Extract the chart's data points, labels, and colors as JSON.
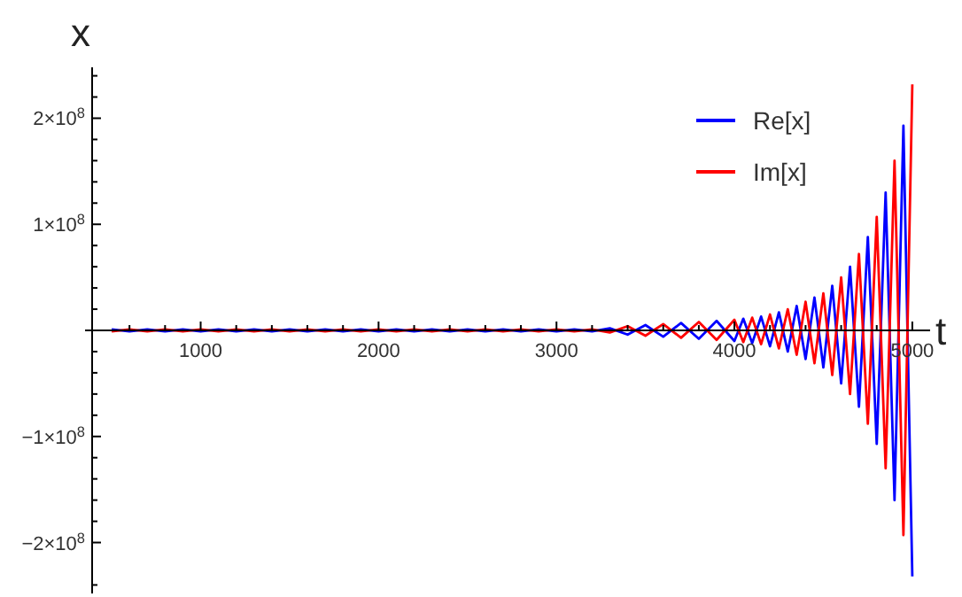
{
  "chart_data": {
    "type": "line",
    "xlabel": "t",
    "ylabel": "x",
    "x": [
      500,
      600,
      700,
      800,
      900,
      1000,
      1100,
      1200,
      1300,
      1400,
      1500,
      1600,
      1700,
      1800,
      1900,
      2000,
      2100,
      2200,
      2300,
      2400,
      2500,
      2600,
      2700,
      2800,
      2900,
      3000,
      3100,
      3200,
      3300,
      3400,
      3500,
      3600,
      3700,
      3800,
      3900,
      4000,
      4050,
      4100,
      4150,
      4200,
      4250,
      4300,
      4350,
      4400,
      4450,
      4500,
      4550,
      4600,
      4650,
      4700,
      4750,
      4800,
      4850,
      4900,
      4950,
      5000
    ],
    "series": [
      {
        "name": "Re[x]",
        "color": "#0000ff",
        "values": [
          1000000.0,
          -1000000.0,
          1000000.0,
          -1000000.0,
          1000000.0,
          -1000000.0,
          1000000.0,
          -1000000.0,
          1000000.0,
          -1000000.0,
          1000000.0,
          -1000000.0,
          1000000.0,
          -1000000.0,
          1000000.0,
          -1000000.0,
          1000000.0,
          -1000000.0,
          1000000.0,
          -1000000.0,
          1000000.0,
          -1000000.0,
          1000000.0,
          -1000000.0,
          1000000.0,
          -1000000.0,
          1000000.0,
          -1000000.0,
          2000000.0,
          -4000000.0,
          5000000.0,
          -6000000.0,
          7000000.0,
          -8000000.0,
          9000000.0,
          -10000000.0,
          11000000.0,
          -12000000.0,
          13000000.0,
          -15000000.0,
          17000000.0,
          -20000000.0,
          23000000.0,
          -27000000.0,
          31000000.0,
          -35000000.0,
          42000000.0,
          -50000000.0,
          60000000.0,
          -72000000.0,
          88000000.0,
          -107000000.0,
          130000000.0,
          -160000000.0,
          193000000.0,
          -232000000.0
        ]
      },
      {
        "name": "Im[x]",
        "color": "#ff0000",
        "values": [
          -1000000.0,
          1000000.0,
          -1000000.0,
          1000000.0,
          -1000000.0,
          1000000.0,
          -1000000.0,
          1000000.0,
          -1000000.0,
          1000000.0,
          -1000000.0,
          1000000.0,
          -1000000.0,
          1000000.0,
          -1000000.0,
          1000000.0,
          -1000000.0,
          1000000.0,
          -1000000.0,
          1000000.0,
          -1000000.0,
          1000000.0,
          -1000000.0,
          1000000.0,
          -1000000.0,
          1000000.0,
          -1000000.0,
          1000000.0,
          -2000000.0,
          4000000.0,
          -5000000.0,
          6000000.0,
          -7000000.0,
          8000000.0,
          -9000000.0,
          10000000.0,
          -11000000.0,
          12000000.0,
          -13000000.0,
          15000000.0,
          -17000000.0,
          20000000.0,
          -23000000.0,
          27000000.0,
          -31000000.0,
          35000000.0,
          -42000000.0,
          50000000.0,
          -60000000.0,
          72000000.0,
          -88000000.0,
          107000000.0,
          -130000000.0,
          160000000.0,
          -193000000.0,
          232000000.0
        ]
      }
    ],
    "xlim": [
      390,
      5100
    ],
    "xticks": [
      {
        "value": 600,
        "label": null
      },
      {
        "value": 800,
        "label": null
      },
      1000,
      {
        "value": 1200,
        "label": null
      },
      {
        "value": 1400,
        "label": null
      },
      {
        "value": 1600,
        "label": null
      },
      {
        "value": 1800,
        "label": null
      },
      2000,
      {
        "value": 2200,
        "label": null
      },
      {
        "value": 2400,
        "label": null
      },
      {
        "value": 2600,
        "label": null
      },
      {
        "value": 2800,
        "label": null
      },
      3000,
      {
        "value": 3200,
        "label": null
      },
      {
        "value": 3400,
        "label": null
      },
      {
        "value": 3600,
        "label": null
      },
      {
        "value": 3800,
        "label": null
      },
      4000,
      {
        "value": 4200,
        "label": null
      },
      {
        "value": 4400,
        "label": null
      },
      {
        "value": 4600,
        "label": null
      },
      {
        "value": 4800,
        "label": null
      },
      5000
    ],
    "ylim": [
      -248000000.0,
      248000000.0
    ],
    "yticks": [
      {
        "value": -240000000.0,
        "label": null
      },
      {
        "value": -200000000.0,
        "label": "−2×10$^{8}$"
      },
      {
        "value": -180000000.0,
        "label": null
      },
      {
        "value": -160000000.0,
        "label": null
      },
      {
        "value": -140000000.0,
        "label": null
      },
      {
        "value": -120000000.0,
        "label": null
      },
      {
        "value": -100000000.0,
        "label": "−1×10$^{8}$"
      },
      {
        "value": -80000000.0,
        "label": null
      },
      {
        "value": -60000000.0,
        "label": null
      },
      {
        "value": -40000000.0,
        "label": null
      },
      {
        "value": -20000000.0,
        "label": null
      },
      {
        "value": 20000000.0,
        "label": null
      },
      {
        "value": 40000000.0,
        "label": null
      },
      {
        "value": 60000000.0,
        "label": null
      },
      {
        "value": 80000000.0,
        "label": null
      },
      {
        "value": 100000000.0,
        "label": "1×10$^{8}$"
      },
      {
        "value": 120000000.0,
        "label": null
      },
      {
        "value": 140000000.0,
        "label": null
      },
      {
        "value": 160000000.0,
        "label": null
      },
      {
        "value": 180000000.0,
        "label": null
      },
      {
        "value": 200000000.0,
        "label": "2×10$^{8}$"
      },
      {
        "value": 220000000.0,
        "label": null
      },
      {
        "value": 240000000.0,
        "label": null
      }
    ],
    "legend": "top right",
    "grid": false,
    "line_style": "solid"
  }
}
